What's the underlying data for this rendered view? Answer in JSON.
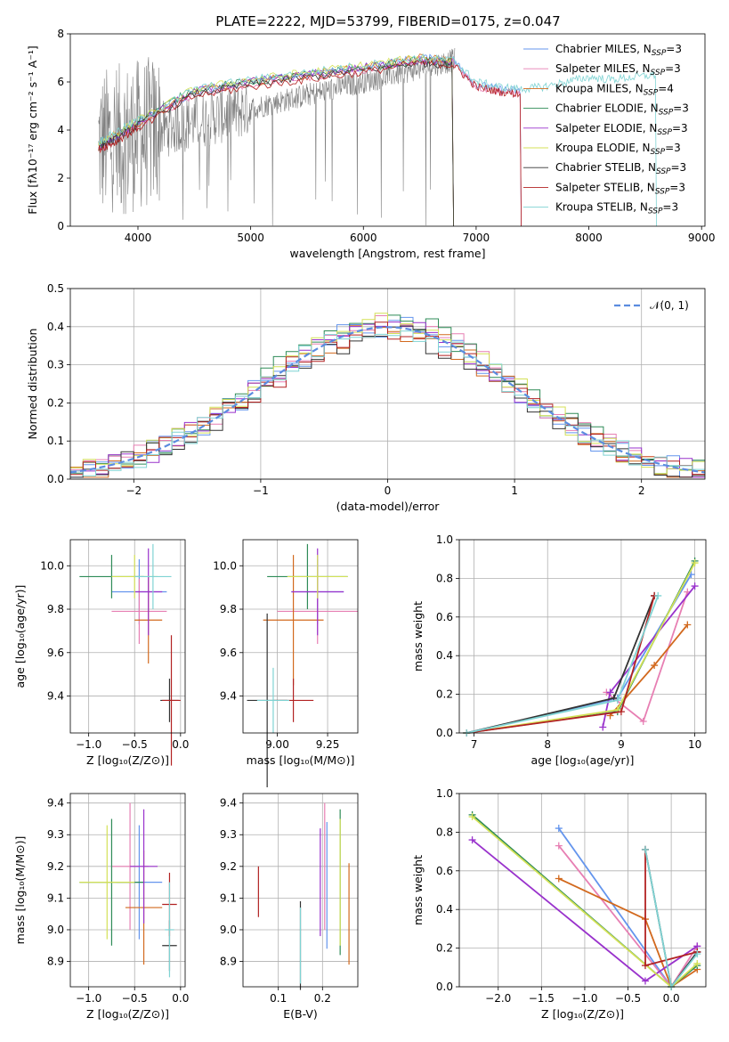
{
  "title": "PLATE=2222, MJD=53799, FIBERID=0175, z=0.047",
  "colors": [
    "#6495ed",
    "#e77fb3",
    "#d2691e",
    "#2e8b57",
    "#9932cc",
    "#d4e157",
    "#333333",
    "#b22222",
    "#7fd3d3"
  ],
  "chart_data": [
    {
      "id": "spectrum",
      "type": "line",
      "xlabel": "wavelength [Angstrom, rest frame]",
      "ylabel": "Flux [fλ10⁻¹⁷ erg cm⁻² s⁻¹ A⁻¹]",
      "xlim": [
        3400,
        9030
      ],
      "ylim": [
        0,
        8
      ],
      "xticks": [
        4000,
        5000,
        6000,
        7000,
        8000,
        9000
      ],
      "yticks": [
        0,
        2,
        4,
        6,
        8
      ],
      "grid": false,
      "legend_position": "top-right",
      "series": [
        {
          "name": "Chabrier MILES, N_SSP=3",
          "x": [
            3650,
            3800,
            4000,
            4500,
            5000,
            5500,
            6000,
            6500,
            6800,
            7000,
            7200,
            7400
          ],
          "y": [
            3.3,
            3.7,
            4.3,
            5.6,
            6.0,
            6.3,
            6.6,
            7.0,
            6.9,
            5.9,
            5.7,
            5.6
          ]
        },
        {
          "name": "Salpeter MILES, N_SSP=3",
          "x": [
            3650,
            3800,
            4000,
            4500,
            5000,
            5500,
            6000,
            6500,
            6800,
            7000,
            7200,
            7400
          ],
          "y": [
            3.2,
            3.6,
            4.2,
            5.5,
            5.9,
            6.2,
            6.5,
            6.9,
            6.8,
            5.8,
            5.6,
            5.5
          ]
        },
        {
          "name": "Kroupa MILES, N_SSP=4",
          "x": [
            3650,
            3800,
            4000,
            4500,
            5000,
            5500,
            6000,
            6500,
            6800
          ],
          "y": [
            3.4,
            3.8,
            4.3,
            5.6,
            6.0,
            6.3,
            6.6,
            7.0,
            6.9
          ]
        },
        {
          "name": "Chabrier ELODIE, N_SSP=3",
          "x": [
            3650,
            3800,
            4000,
            4500,
            5000,
            5500,
            6000,
            6500,
            6800
          ],
          "y": [
            3.3,
            3.7,
            4.4,
            5.7,
            6.0,
            6.3,
            6.6,
            6.9,
            6.8
          ]
        },
        {
          "name": "Salpeter ELODIE, N_SSP=3",
          "x": [
            3650,
            3800,
            4000,
            4500,
            5000,
            5500,
            6000,
            6500,
            6800
          ],
          "y": [
            3.3,
            3.7,
            4.3,
            5.6,
            6.0,
            6.3,
            6.6,
            6.9,
            6.8
          ]
        },
        {
          "name": "Kroupa ELODIE, N_SSP=3",
          "x": [
            3650,
            3800,
            4000,
            4500,
            5000,
            5500,
            6000,
            6500,
            6800
          ],
          "y": [
            3.4,
            3.8,
            4.4,
            5.7,
            6.1,
            6.4,
            6.7,
            7.0,
            6.9
          ]
        },
        {
          "name": "Chabrier STELIB, N_SSP=3",
          "x": [
            3650,
            3800,
            4000,
            4500,
            5000,
            5500,
            6000,
            6500,
            6800
          ],
          "y": [
            3.3,
            3.6,
            4.2,
            5.5,
            5.9,
            6.2,
            6.5,
            6.8,
            6.7
          ]
        },
        {
          "name": "Salpeter STELIB, N_SSP=3",
          "x": [
            3650,
            3800,
            4000,
            4500,
            5000,
            5500,
            6000,
            6500,
            6800,
            7000,
            7200,
            7400
          ],
          "y": [
            3.2,
            3.5,
            4.1,
            5.4,
            5.8,
            6.1,
            6.4,
            6.8,
            6.7,
            5.8,
            5.6,
            5.5
          ]
        },
        {
          "name": "Kroupa STELIB, N_SSP=3",
          "x": [
            3650,
            3800,
            4000,
            4500,
            5000,
            5500,
            6000,
            6500,
            6800,
            7000,
            7200,
            7400,
            7600,
            7800,
            8000,
            8200,
            8400,
            8600
          ],
          "y": [
            3.5,
            3.9,
            4.4,
            5.7,
            6.1,
            6.4,
            6.7,
            7.0,
            6.9,
            6.0,
            5.8,
            5.7,
            5.8,
            6.0,
            6.2,
            6.1,
            6.2,
            6.3
          ]
        }
      ]
    },
    {
      "id": "residuals",
      "type": "line",
      "xlabel": "(data-model)/error",
      "ylabel": "Normed distribution",
      "xlim": [
        -2.5,
        2.5
      ],
      "ylim": [
        0,
        0.5
      ],
      "xticks": [
        -2,
        -1,
        0,
        1,
        2
      ],
      "yticks": [
        0.0,
        0.1,
        0.2,
        0.3,
        0.4,
        0.5
      ],
      "grid": true,
      "legend_position": "top-right",
      "legend": "𝒩(0, 1)",
      "bins": {
        "start": -2.5,
        "width": 0.1,
        "count": 50
      },
      "series_amplitude": [
        0.4,
        0.41,
        0.39,
        0.42,
        0.4,
        0.41,
        0.38,
        0.39,
        0.4
      ]
    },
    {
      "id": "age-vs-Z",
      "type": "scatter",
      "xlabel": "Z [log₁₀(Z/Z⊙)]",
      "ylabel": "age  [log₁₀(age/yr)]",
      "xlim": [
        -1.2,
        0.05
      ],
      "ylim": [
        9.23,
        10.12
      ],
      "xticks": [
        -1.0,
        -0.5,
        0.0
      ],
      "yticks": [
        9.4,
        9.6,
        9.8,
        10.0
      ],
      "grid": true,
      "points": [
        {
          "x": -0.45,
          "y": 9.88,
          "xerr": 0.3,
          "yerr": 0.15
        },
        {
          "x": -0.45,
          "y": 9.79,
          "xerr": 0.3,
          "yerr": 0.15
        },
        {
          "x": -0.35,
          "y": 9.75,
          "xerr": 0.15,
          "yerr": 0.2
        },
        {
          "x": -0.75,
          "y": 9.95,
          "xerr": 0.35,
          "yerr": 0.1
        },
        {
          "x": -0.35,
          "y": 9.88,
          "xerr": 0.15,
          "yerr": 0.2
        },
        {
          "x": -0.5,
          "y": 9.95,
          "xerr": 0.25,
          "yerr": 0.1
        },
        {
          "x": -0.12,
          "y": 9.38,
          "xerr": 0.1,
          "yerr": 0.1
        },
        {
          "x": -0.1,
          "y": 9.38,
          "xerr": 0.1,
          "yerr": 0.3
        },
        {
          "x": -0.3,
          "y": 9.95,
          "xerr": 0.2,
          "yerr": 0.15
        }
      ]
    },
    {
      "id": "age-vs-mass",
      "type": "scatter",
      "xlabel": "mass [log₁₀(M/M⊙)]",
      "ylabel": "",
      "xlim": [
        8.83,
        9.4
      ],
      "ylim": [
        9.23,
        10.12
      ],
      "xticks": [
        9.0,
        9.25
      ],
      "yticks": [
        9.4,
        9.6,
        9.8,
        10.0
      ],
      "grid": true,
      "points": [
        {
          "x": 9.2,
          "y": 9.88,
          "xerr": 0.13,
          "yerr": 0.15
        },
        {
          "x": 9.2,
          "y": 9.79,
          "xerr": 0.2,
          "yerr": 0.15
        },
        {
          "x": 9.08,
          "y": 9.75,
          "xerr": 0.15,
          "yerr": 0.3
        },
        {
          "x": 9.15,
          "y": 9.95,
          "xerr": 0.2,
          "yerr": 0.15
        },
        {
          "x": 9.2,
          "y": 9.88,
          "xerr": 0.13,
          "yerr": 0.2
        },
        {
          "x": 9.2,
          "y": 9.95,
          "xerr": 0.15,
          "yerr": 0.1
        },
        {
          "x": 8.95,
          "y": 9.38,
          "xerr": 0.1,
          "yerr": 0.4
        },
        {
          "x": 9.08,
          "y": 9.38,
          "xerr": 0.1,
          "yerr": 0.1
        },
        {
          "x": 8.98,
          "y": 9.38,
          "xerr": 0.08,
          "yerr": 0.15
        }
      ]
    },
    {
      "id": "weight-vs-age",
      "type": "line",
      "xlabel": "age  [log₁₀(age/yr)]",
      "ylabel": "mass weight",
      "xlim": [
        6.8,
        10.15
      ],
      "ylim": [
        0,
        1
      ],
      "xticks": [
        7,
        8,
        9,
        10
      ],
      "yticks": [
        0.0,
        0.2,
        0.4,
        0.6,
        0.8,
        1.0
      ],
      "grid": true,
      "series": [
        {
          "x": [
            6.9,
            8.95,
            9.95
          ],
          "y": [
            0.0,
            0.18,
            0.82
          ]
        },
        {
          "x": [
            8.8,
            9.3,
            9.9
          ],
          "y": [
            0.21,
            0.06,
            0.73
          ]
        },
        {
          "x": [
            8.85,
            9.45,
            9.9
          ],
          "y": [
            0.09,
            0.35,
            0.56
          ]
        },
        {
          "x": [
            6.9,
            8.95,
            10.0
          ],
          "y": [
            0.0,
            0.11,
            0.89
          ]
        },
        {
          "x": [
            8.75,
            8.85,
            10.0
          ],
          "y": [
            0.03,
            0.21,
            0.76
          ]
        },
        {
          "x": [
            6.9,
            8.95,
            10.0
          ],
          "y": [
            0.0,
            0.12,
            0.88
          ]
        },
        {
          "x": [
            6.9,
            8.9,
            9.45
          ],
          "y": [
            0.0,
            0.18,
            0.71
          ]
        },
        {
          "x": [
            6.9,
            9.0,
            9.45
          ],
          "y": [
            0.0,
            0.11,
            0.71
          ]
        },
        {
          "x": [
            6.9,
            8.95,
            9.5
          ],
          "y": [
            0.0,
            0.17,
            0.71
          ]
        }
      ]
    },
    {
      "id": "mass-vs-Z",
      "type": "scatter",
      "xlabel": "Z [log₁₀(Z/Z⊙)]",
      "ylabel": "mass [log₁₀(M/M⊙)]",
      "xlim": [
        -1.2,
        0.05
      ],
      "ylim": [
        8.82,
        9.43
      ],
      "xticks": [
        -1.0,
        -0.5,
        0.0
      ],
      "yticks": [
        8.9,
        9.0,
        9.1,
        9.2,
        9.3,
        9.4
      ],
      "grid": true,
      "points": [
        {
          "x": -0.45,
          "y": 9.15,
          "xerr": 0.25,
          "yerr": 0.18
        },
        {
          "x": -0.55,
          "y": 9.2,
          "xerr": 0.2,
          "yerr": 0.2
        },
        {
          "x": -0.4,
          "y": 9.07,
          "xerr": 0.2,
          "yerr": 0.18
        },
        {
          "x": -0.75,
          "y": 9.15,
          "xerr": 0.35,
          "yerr": 0.2
        },
        {
          "x": -0.4,
          "y": 9.2,
          "xerr": 0.15,
          "yerr": 0.18
        },
        {
          "x": -0.8,
          "y": 9.15,
          "xerr": 0.3,
          "yerr": 0.18
        },
        {
          "x": -0.12,
          "y": 8.95,
          "xerr": 0.08,
          "yerr": 0.08
        },
        {
          "x": -0.12,
          "y": 9.08,
          "xerr": 0.08,
          "yerr": 0.1
        },
        {
          "x": -0.12,
          "y": 9.0,
          "xerr": 0.05,
          "yerr": 0.15
        }
      ]
    },
    {
      "id": "mass-vs-EBV",
      "type": "scatter",
      "xlabel": "E(B-V)",
      "ylabel": "",
      "xlim": [
        0.02,
        0.28
      ],
      "ylim": [
        8.82,
        9.43
      ],
      "xticks": [
        0.1,
        0.2
      ],
      "yticks": [
        8.9,
        9.0,
        9.1,
        9.2,
        9.3,
        9.4
      ],
      "grid": true,
      "points": [
        {
          "x": 0.21,
          "y": 9.14,
          "yerr": 0.2
        },
        {
          "x": 0.205,
          "y": 9.2,
          "yerr": 0.2
        },
        {
          "x": 0.26,
          "y": 9.05,
          "yerr": 0.16
        },
        {
          "x": 0.24,
          "y": 9.15,
          "yerr": 0.23
        },
        {
          "x": 0.195,
          "y": 9.15,
          "yerr": 0.17
        },
        {
          "x": 0.24,
          "y": 9.15,
          "yerr": 0.2
        },
        {
          "x": 0.15,
          "y": 8.95,
          "yerr": 0.14
        },
        {
          "x": 0.055,
          "y": 9.12,
          "yerr": 0.08
        },
        {
          "x": 0.15,
          "y": 8.95,
          "yerr": 0.12
        }
      ]
    },
    {
      "id": "weight-vs-Z",
      "type": "line",
      "xlabel": "Z [log₁₀(Z/Z⊙)]",
      "ylabel": "mass weight",
      "xlim": [
        -2.45,
        0.4
      ],
      "ylim": [
        0,
        1
      ],
      "xticks": [
        -2.0,
        -1.5,
        -1.0,
        -0.5,
        0.0
      ],
      "yticks": [
        0.0,
        0.2,
        0.4,
        0.6,
        0.8,
        1.0
      ],
      "grid": true,
      "series": [
        {
          "x": [
            -1.3,
            0.0,
            0.3
          ],
          "y": [
            0.82,
            0.0,
            0.18
          ]
        },
        {
          "x": [
            -1.3,
            0.0,
            0.3
          ],
          "y": [
            0.73,
            0.0,
            0.21
          ]
        },
        {
          "x": [
            -1.3,
            -0.3,
            0.0,
            0.3
          ],
          "y": [
            0.56,
            0.35,
            0.0,
            0.09
          ]
        },
        {
          "x": [
            -2.3,
            0.0,
            0.3
          ],
          "y": [
            0.89,
            0.0,
            0.11
          ]
        },
        {
          "x": [
            -2.3,
            -0.3,
            0.3
          ],
          "y": [
            0.76,
            0.03,
            0.21
          ]
        },
        {
          "x": [
            -2.3,
            0.0,
            0.3
          ],
          "y": [
            0.88,
            0.0,
            0.12
          ]
        },
        {
          "x": [
            -0.3,
            0.0,
            0.3
          ],
          "y": [
            0.71,
            0.0,
            0.18
          ]
        },
        {
          "x": [
            -0.3,
            -0.3,
            0.3
          ],
          "y": [
            0.71,
            0.11,
            0.18
          ]
        },
        {
          "x": [
            -0.3,
            0.0,
            0.3
          ],
          "y": [
            0.71,
            0.0,
            0.17
          ]
        }
      ]
    }
  ]
}
